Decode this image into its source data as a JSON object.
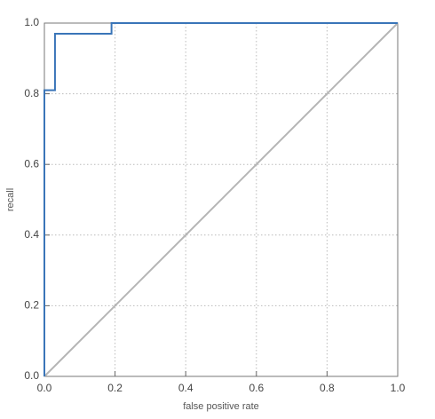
{
  "chart_data": {
    "type": "line",
    "xlabel": "false positive rate",
    "ylabel": "recall",
    "series": [
      {
        "color": "#3a75b8",
        "x": [
          0,
          0,
          0.03,
          0.03,
          0.19,
          0.19,
          1
        ],
        "values": [
          0,
          0.81,
          0.81,
          0.97,
          0.97,
          1,
          1
        ]
      },
      {
        "color": "#b5b5b5",
        "x": [
          0,
          1
        ],
        "values": [
          0,
          1
        ]
      }
    ],
    "xlim": [
      0,
      1
    ],
    "ylim": [
      0,
      1
    ],
    "xticks": [
      {
        "value": 0,
        "label": "0.0"
      },
      0.2,
      0.4,
      0.6,
      0.8,
      {
        "value": 1,
        "label": "1.0"
      }
    ],
    "yticks": [
      {
        "value": 0,
        "label": "0.0"
      },
      0.2,
      0.4,
      0.6,
      0.8,
      {
        "value": 1,
        "label": "1.0"
      }
    ],
    "grid": true
  }
}
